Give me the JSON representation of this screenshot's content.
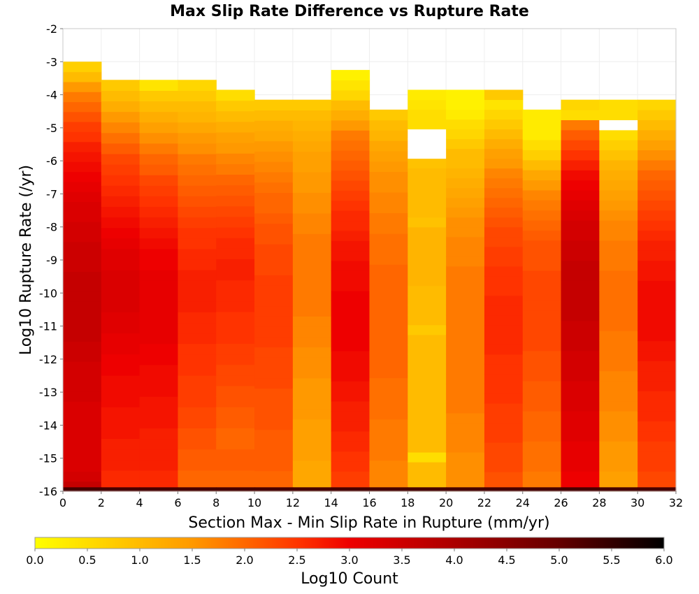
{
  "chart_data": {
    "type": "heatmap",
    "title": "Max Slip Rate Difference vs Rupture Rate",
    "xlabel": "Section Max - Min Slip Rate in Rupture (mm/yr)",
    "ylabel": "Log10 Rupture Rate (/yr)",
    "xlim": [
      0,
      32
    ],
    "ylim": [
      -16,
      -2
    ],
    "x_ticks": [
      "0",
      "2",
      "4",
      "6",
      "8",
      "10",
      "12",
      "14",
      "16",
      "18",
      "20",
      "22",
      "24",
      "26",
      "28",
      "30",
      "32"
    ],
    "y_ticks": [
      "-2",
      "-3",
      "-4",
      "-5",
      "-6",
      "-7",
      "-8",
      "-9",
      "-10",
      "-11",
      "-12",
      "-13",
      "-14",
      "-15",
      "-16"
    ],
    "colorbar": {
      "label": "Log10 Count",
      "range": [
        0,
        6
      ],
      "ticks": [
        "0.0",
        "0.5",
        "1.0",
        "1.5",
        "2.0",
        "2.5",
        "3.0",
        "3.5",
        "4.0",
        "4.5",
        "5.0",
        "5.5",
        "6.0"
      ]
    },
    "grid": true,
    "bins": {
      "x_start": 0,
      "x_width": 2,
      "y_start": -16,
      "y_height": 0.28,
      "columns": [
        {
          "top": -3.0,
          "values": [
            3.6,
            3.4,
            3.3,
            3.3,
            3.3,
            3.3,
            3.3,
            3.3,
            3.3,
            3.4,
            3.4,
            3.4,
            3.4,
            3.5,
            3.5,
            3.6,
            3.6,
            3.6,
            3.6,
            3.6,
            3.6,
            3.6,
            3.5,
            3.5,
            3.5,
            3.4,
            3.4,
            3.3,
            3.3,
            3.2,
            3.1,
            3.0,
            2.9,
            2.8,
            2.7,
            2.5,
            2.4,
            2.2,
            2.0,
            1.8,
            1.5,
            1.0,
            0.7
          ]
        },
        {
          "top": -3.55,
          "values": [
            2.6,
            2.6,
            2.7,
            2.7,
            2.7,
            2.8,
            2.8,
            2.8,
            2.9,
            2.9,
            2.9,
            3.0,
            3.0,
            3.1,
            3.1,
            3.2,
            3.2,
            3.3,
            3.3,
            3.3,
            3.3,
            3.2,
            3.2,
            3.1,
            3.0,
            2.9,
            2.8,
            2.7,
            2.6,
            2.5,
            2.4,
            2.3,
            2.1,
            1.9,
            1.7,
            1.5,
            1.2,
            1.0,
            0.8
          ]
        },
        {
          "top": -3.55,
          "values": [
            2.6,
            2.6,
            2.7,
            2.7,
            2.7,
            2.7,
            2.8,
            2.8,
            2.8,
            2.9,
            2.9,
            2.9,
            3.0,
            3.0,
            3.1,
            3.1,
            3.1,
            3.1,
            3.1,
            3.1,
            3.1,
            3.0,
            3.0,
            2.9,
            2.8,
            2.7,
            2.6,
            2.5,
            2.4,
            2.3,
            2.1,
            2.0,
            1.8,
            1.6,
            1.4,
            1.2,
            1.0,
            0.8,
            0.4
          ]
        },
        {
          "top": -3.55,
          "values": [
            2.0,
            2.0,
            2.1,
            2.1,
            2.2,
            2.2,
            2.3,
            2.3,
            2.4,
            2.4,
            2.4,
            2.5,
            2.5,
            2.5,
            2.6,
            2.6,
            2.6,
            2.7,
            2.7,
            2.7,
            2.7,
            2.6,
            2.6,
            2.5,
            2.5,
            2.4,
            2.3,
            2.2,
            2.1,
            2.0,
            1.9,
            1.8,
            1.6,
            1.5,
            1.3,
            1.1,
            1.0,
            0.8,
            0.6
          ]
        },
        {
          "top": -3.85,
          "values": [
            2.0,
            2.0,
            2.1,
            2.1,
            2.0,
            2.0,
            2.1,
            2.1,
            2.2,
            2.2,
            2.3,
            2.3,
            2.4,
            2.4,
            2.5,
            2.5,
            2.5,
            2.6,
            2.6,
            2.6,
            2.7,
            2.7,
            2.6,
            2.6,
            2.5,
            2.4,
            2.3,
            2.2,
            2.1,
            2.0,
            1.8,
            1.7,
            1.5,
            1.4,
            1.2,
            1.0,
            0.8,
            0.5
          ]
        },
        {
          "top": -4.15,
          "values": [
            2.0,
            2.0,
            2.1,
            2.1,
            2.1,
            2.1,
            2.2,
            2.2,
            2.2,
            2.2,
            2.3,
            2.3,
            2.3,
            2.3,
            2.4,
            2.4,
            2.4,
            2.4,
            2.4,
            2.4,
            2.4,
            2.3,
            2.3,
            2.3,
            2.2,
            2.2,
            2.1,
            2.0,
            2.0,
            1.9,
            1.8,
            1.7,
            1.6,
            1.5,
            1.3,
            1.2,
            1.0,
            0.8
          ]
        },
        {
          "top": -4.15,
          "values": [
            1.3,
            1.3,
            1.3,
            1.4,
            1.4,
            1.4,
            1.4,
            1.5,
            1.5,
            1.5,
            1.5,
            1.6,
            1.6,
            1.6,
            1.7,
            1.7,
            1.7,
            1.8,
            1.8,
            1.8,
            1.8,
            1.8,
            1.8,
            1.8,
            1.8,
            1.7,
            1.7,
            1.6,
            1.6,
            1.5,
            1.5,
            1.4,
            1.4,
            1.3,
            1.2,
            1.1,
            1.0,
            0.8
          ]
        },
        {
          "top": -3.25,
          "values": [
            2.4,
            2.4,
            2.5,
            2.5,
            2.6,
            2.6,
            2.7,
            2.7,
            2.7,
            2.8,
            2.8,
            2.9,
            2.9,
            2.9,
            3.0,
            3.0,
            3.0,
            3.0,
            3.0,
            3.0,
            2.9,
            2.9,
            2.9,
            2.8,
            2.8,
            2.7,
            2.6,
            2.6,
            2.5,
            2.4,
            2.3,
            2.2,
            2.1,
            2.0,
            1.9,
            1.8,
            1.5,
            1.2,
            1.0,
            0.6,
            0.4,
            0.2
          ]
        },
        {
          "top": -4.45,
          "values": [
            1.7,
            1.7,
            1.7,
            1.8,
            1.8,
            1.8,
            1.8,
            1.9,
            1.9,
            1.9,
            1.9,
            2.0,
            2.0,
            2.0,
            2.0,
            2.0,
            2.0,
            2.0,
            2.0,
            2.0,
            2.0,
            2.0,
            1.9,
            1.9,
            1.9,
            1.8,
            1.8,
            1.7,
            1.7,
            1.6,
            1.6,
            1.5,
            1.4,
            1.3,
            1.1,
            1.0,
            0.8
          ]
        },
        {
          "top": -3.85,
          "values": [
            1.0,
            1.0,
            1.0,
            0.5,
            1.0,
            1.0,
            1.0,
            1.0,
            1.0,
            1.0,
            1.0,
            1.0,
            1.0,
            1.0,
            1.0,
            1.0,
            0.8,
            1.0,
            1.0,
            1.0,
            1.0,
            1.1,
            1.1,
            1.1,
            1.1,
            1.1,
            1.1,
            0.9,
            1.0,
            1.0,
            1.0,
            1.0,
            1.0,
            0.9,
            0.0,
            0.0,
            0.0,
            0.5,
            0.5,
            0.4,
            0.3
          ]
        },
        {
          "top": -3.85,
          "values": [
            1.6,
            1.6,
            1.6,
            1.6,
            1.7,
            1.7,
            1.7,
            1.7,
            1.8,
            1.8,
            1.8,
            1.8,
            1.8,
            1.8,
            1.8,
            1.8,
            1.8,
            1.8,
            1.8,
            1.8,
            1.8,
            1.8,
            1.8,
            1.7,
            1.7,
            1.7,
            1.6,
            1.6,
            1.5,
            1.4,
            1.3,
            1.2,
            1.1,
            1.0,
            1.0,
            0.8,
            0.6,
            0.5,
            0.3,
            0.2,
            0.2
          ]
        },
        {
          "top": -3.85,
          "values": [
            2.2,
            2.2,
            2.3,
            2.3,
            2.3,
            2.4,
            2.4,
            2.4,
            2.4,
            2.5,
            2.5,
            2.5,
            2.5,
            2.5,
            2.6,
            2.6,
            2.6,
            2.6,
            2.6,
            2.6,
            2.5,
            2.5,
            2.5,
            2.4,
            2.4,
            2.3,
            2.3,
            2.2,
            2.1,
            2.0,
            1.9,
            1.8,
            1.7,
            1.5,
            1.4,
            1.2,
            1.0,
            0.8,
            0.6,
            0.4,
            0.8
          ]
        },
        {
          "top": -4.45,
          "values": [
            1.8,
            1.8,
            1.9,
            1.9,
            1.9,
            2.0,
            2.0,
            2.0,
            2.1,
            2.1,
            2.1,
            2.2,
            2.2,
            2.2,
            2.3,
            2.3,
            2.3,
            2.3,
            2.3,
            2.3,
            2.3,
            2.3,
            2.2,
            2.2,
            2.2,
            2.1,
            2.0,
            1.9,
            1.8,
            1.7,
            1.5,
            1.3,
            1.0,
            0.7,
            0.5,
            0.3,
            0.3,
            0.3
          ]
        },
        {
          "top": -4.15,
          "values": [
            3.0,
            3.0,
            3.1,
            3.1,
            3.1,
            3.2,
            3.2,
            3.2,
            3.3,
            3.3,
            3.3,
            3.4,
            3.4,
            3.4,
            3.5,
            3.5,
            3.5,
            3.6,
            3.6,
            3.6,
            3.6,
            3.6,
            3.6,
            3.5,
            3.5,
            3.4,
            3.4,
            3.3,
            3.2,
            3.1,
            3.0,
            2.9,
            2.7,
            2.5,
            2.3,
            2.1,
            1.8,
            0.5,
            0.6
          ]
        },
        {
          "top": -4.15,
          "values": [
            1.4,
            1.4,
            1.5,
            1.5,
            1.5,
            1.6,
            1.6,
            1.6,
            1.7,
            1.7,
            1.7,
            1.7,
            1.8,
            1.8,
            1.8,
            1.8,
            1.9,
            1.9,
            1.9,
            1.9,
            1.9,
            1.9,
            1.8,
            1.8,
            1.8,
            1.7,
            1.7,
            1.6,
            1.5,
            1.4,
            1.3,
            1.2,
            1.1,
            0.9,
            0.7,
            0.5,
            0.0,
            0.5,
            0.5
          ]
        },
        {
          "top": -4.15,
          "values": [
            2.3,
            2.3,
            2.4,
            2.4,
            2.4,
            2.5,
            2.5,
            2.6,
            2.6,
            2.6,
            2.7,
            2.7,
            2.7,
            2.8,
            2.8,
            2.9,
            2.9,
            2.9,
            2.9,
            2.9,
            2.9,
            2.8,
            2.8,
            2.7,
            2.7,
            2.6,
            2.5,
            2.4,
            2.3,
            2.2,
            2.1,
            2.0,
            1.8,
            1.6,
            1.4,
            1.2,
            1.0,
            0.8,
            0.6
          ]
        }
      ],
      "bottom_row": {
        "y_from": -16,
        "y_to": -15.88,
        "values": [
          5.3,
          5.3,
          5.3,
          5.3,
          5.3,
          5.3,
          5.3,
          5.3,
          5.3,
          5.3,
          5.3,
          5.3,
          5.3,
          5.3,
          5.3,
          5.3
        ]
      }
    }
  }
}
